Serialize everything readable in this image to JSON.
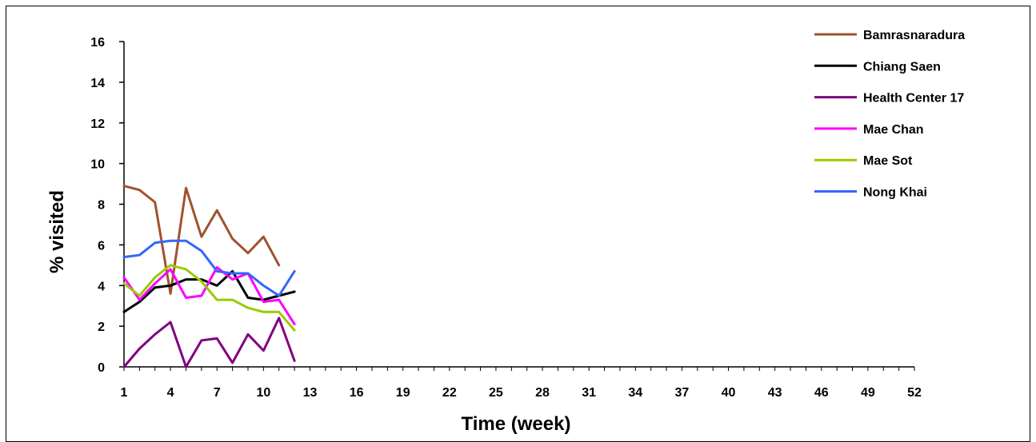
{
  "chart_data": {
    "type": "line",
    "xlabel": "Time (week)",
    "ylabel": "% visited",
    "xlim": [
      1,
      52
    ],
    "ylim": [
      0,
      16
    ],
    "x_ticks": [
      1,
      4,
      7,
      10,
      13,
      16,
      19,
      22,
      25,
      28,
      31,
      34,
      37,
      40,
      43,
      46,
      49,
      52
    ],
    "y_ticks": [
      0,
      2,
      4,
      6,
      8,
      10,
      12,
      14,
      16
    ],
    "grid": false,
    "legend_position": "top-right",
    "x": [
      1,
      2,
      3,
      4,
      5,
      6,
      7,
      8,
      9,
      10,
      11,
      12
    ],
    "series": [
      {
        "name": "Bamrasnaradura",
        "color": "#a0522d",
        "values": [
          8.9,
          8.7,
          8.1,
          3.6,
          8.8,
          6.4,
          7.7,
          6.3,
          5.6,
          6.4,
          5.0,
          null
        ]
      },
      {
        "name": "Chiang Saen",
        "color": "#000000",
        "values": [
          2.7,
          3.2,
          3.9,
          4.0,
          4.3,
          4.3,
          4.0,
          4.7,
          3.4,
          3.3,
          3.5,
          3.7
        ]
      },
      {
        "name": "Health Center 17",
        "color": "#800080",
        "values": [
          0.0,
          0.9,
          1.6,
          2.2,
          0.0,
          1.3,
          1.4,
          0.2,
          1.6,
          0.8,
          2.4,
          0.3
        ]
      },
      {
        "name": "Mae Chan",
        "color": "#ff00ff",
        "values": [
          4.4,
          3.3,
          4.1,
          4.8,
          3.4,
          3.5,
          4.9,
          4.3,
          4.6,
          3.2,
          3.3,
          2.1
        ]
      },
      {
        "name": "Mae Sot",
        "color": "#99cc00",
        "values": [
          4.1,
          3.5,
          4.4,
          5.0,
          4.8,
          4.2,
          3.3,
          3.3,
          2.9,
          2.7,
          2.7,
          1.8
        ]
      },
      {
        "name": "Nong Khai",
        "color": "#3366ff",
        "values": [
          5.4,
          5.5,
          6.1,
          6.2,
          6.2,
          5.7,
          4.7,
          4.6,
          4.6,
          4.0,
          3.5,
          4.7
        ]
      }
    ]
  }
}
